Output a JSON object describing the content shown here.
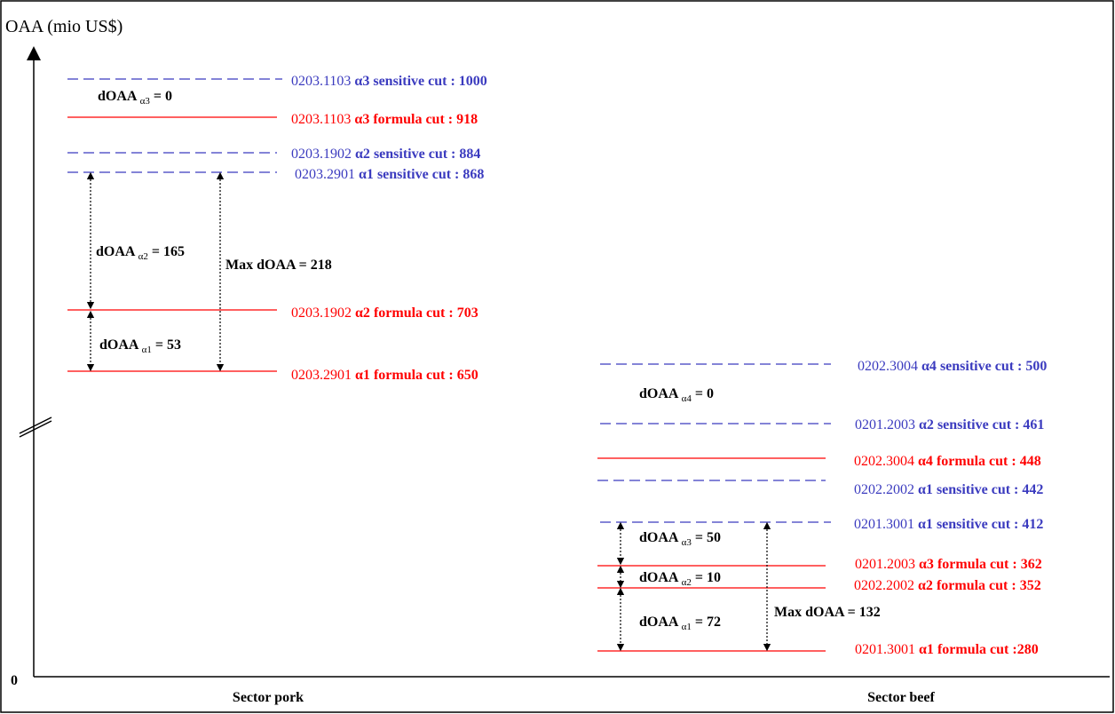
{
  "colors": {
    "sensitive": "#3b3bbf",
    "formula": "#ff0000",
    "axis": "#000000"
  },
  "axis": {
    "y_label": "OAA (mio US$)",
    "zero_label": "0"
  },
  "sectors": {
    "pork": "Sector pork",
    "beef": "Sector beef"
  },
  "pork_lines": [
    {
      "code": "0203.1103",
      "greek": "α3",
      "text": " sensitive cut : 1000",
      "kind": "sensitive"
    },
    {
      "code": "0203.1103",
      "greek": "α3",
      "text": " formula cut : 918",
      "kind": "formula"
    },
    {
      "code": "0203.1902",
      "greek": "α2",
      "text": " sensitive cut : 884",
      "kind": "sensitive"
    },
    {
      "code": "0203.2901",
      "greek": "α1",
      "text": " sensitive cut : 868",
      "kind": "sensitive"
    },
    {
      "code": "0203.1902",
      "greek": "α2",
      "text": " formula cut : 703",
      "kind": "formula"
    },
    {
      "code": "0203.2901",
      "greek": "α1",
      "text": " formula cut : 650",
      "kind": "formula"
    }
  ],
  "beef_lines": [
    {
      "code": "0202.3004",
      "greek": "α4",
      "text": " sensitive cut : 500",
      "kind": "sensitive"
    },
    {
      "code": "0201.2003",
      "greek": "α2",
      "text": " sensitive cut : 461",
      "kind": "sensitive"
    },
    {
      "code": "0202.3004",
      "greek": "α4",
      "text": " formula cut : 448",
      "kind": "formula"
    },
    {
      "code": "0202.2002",
      "greek": "α1",
      "text": " sensitive cut : 442",
      "kind": "sensitive"
    },
    {
      "code": "0201.3001",
      "greek": "α1",
      "text": " sensitive cut : 412",
      "kind": "sensitive"
    },
    {
      "code": "0201.2003",
      "greek": "α3",
      "text": " formula cut : 362",
      "kind": "formula"
    },
    {
      "code": "0202.2002",
      "greek": "α2",
      "text": " formula cut : 352",
      "kind": "formula"
    },
    {
      "code": "0201.3001",
      "greek": "α1",
      "text": " formula cut :280",
      "kind": "formula"
    }
  ],
  "pork_annotations": {
    "d3": {
      "main": "dOAA ",
      "sub": "α3",
      "tail": " = 0"
    },
    "d2": {
      "main": "dOAA ",
      "sub": "α2",
      "tail": " = 165"
    },
    "d1": {
      "main": "dOAA ",
      "sub": "α1",
      "tail": " = 53"
    },
    "max": "Max dOAA = 218"
  },
  "beef_annotations": {
    "d4": {
      "main": "dOAA ",
      "sub": "α4",
      "tail": " = 0"
    },
    "d3": {
      "main": "dOAA ",
      "sub": "α3",
      "tail": " = 50"
    },
    "d2": {
      "main": "dOAA ",
      "sub": "α2",
      "tail": " = 10"
    },
    "d1": {
      "main": "dOAA ",
      "sub": "α1",
      "tail": " = 72"
    },
    "max": "Max dOAA = 132"
  }
}
